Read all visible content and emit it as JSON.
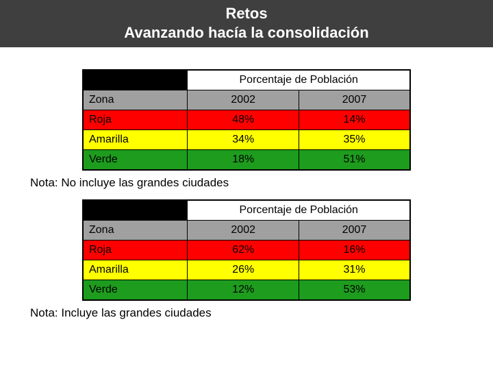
{
  "title_line1": "Retos",
  "title_line2": "Avanzando hacía la consolidación",
  "table_header": "Porcentaje de Población",
  "col_zone": "Zona",
  "col_year1": "2002",
  "col_year2": "2007",
  "colors": {
    "title_bg": "#3f3f3f",
    "header_blank_bg": "#000000",
    "grey_row_bg": "#a0a0a0",
    "roja": "#ff0000",
    "amarilla": "#ffff00",
    "verde": "#1e9c1e",
    "border": "#000000"
  },
  "table1": {
    "rows": [
      {
        "zone": "Roja",
        "y1": "48%",
        "y2": "14%"
      },
      {
        "zone": "Amarilla",
        "y1": "34%",
        "y2": "35%"
      },
      {
        "zone": "Verde",
        "y1": "18%",
        "y2": "51%"
      }
    ],
    "note": "Nota: No incluye las grandes ciudades"
  },
  "table2": {
    "rows": [
      {
        "zone": "Roja",
        "y1": "62%",
        "y2": "16%"
      },
      {
        "zone": "Amarilla",
        "y1": "26%",
        "y2": "31%"
      },
      {
        "zone": "Verde",
        "y1": "12%",
        "y2": "53%"
      }
    ],
    "note": "Nota: Incluye las grandes ciudades"
  },
  "fonts": {
    "title_size_pt": 17,
    "cell_size_pt": 12,
    "note_size_pt": 13
  }
}
